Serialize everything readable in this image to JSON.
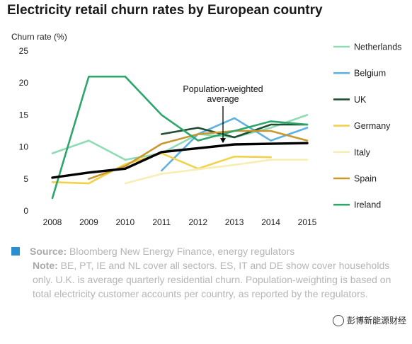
{
  "chart_data": {
    "type": "line",
    "title": "Electricity retail churn rates by European country",
    "ylabel": "Churn rate (%)",
    "xlabel": "",
    "ylim": [
      0,
      25
    ],
    "yticks": [
      0,
      5,
      10,
      15,
      20,
      25
    ],
    "x": [
      2008,
      2009,
      2010,
      2011,
      2012,
      2013,
      2014,
      2015
    ],
    "grid": false,
    "legend_position": "right",
    "series": [
      {
        "name": "Netherlands",
        "color": "#8fdcb4",
        "values": [
          9,
          11,
          8,
          9,
          12,
          11.5,
          13,
          15
        ]
      },
      {
        "name": "Belgium",
        "color": "#5fb2e0",
        "values": [
          null,
          null,
          null,
          6.3,
          12,
          14.5,
          11,
          13
        ]
      },
      {
        "name": "UK",
        "color": "#1f4f33",
        "values": [
          null,
          null,
          null,
          12,
          13,
          11.5,
          13.5,
          13.5
        ]
      },
      {
        "name": "Germany",
        "color": "#f2d24a",
        "values": [
          4.5,
          4.3,
          7.3,
          9,
          6.6,
          8.5,
          8.4,
          null
        ]
      },
      {
        "name": "Italy",
        "color": "#f7eeb4",
        "values": [
          null,
          null,
          4.3,
          5.8,
          6.5,
          7.2,
          8,
          8
        ]
      },
      {
        "name": "Spain",
        "color": "#c8982f",
        "values": [
          null,
          5,
          7,
          10.5,
          12,
          12.5,
          12.5,
          11
        ]
      },
      {
        "name": "Ireland",
        "color": "#2ea56a",
        "values": [
          2,
          21,
          21,
          15,
          11,
          12.5,
          14,
          13.5
        ]
      }
    ],
    "average": {
      "label": "Population-weighted average",
      "label_lines": [
        "Population-weighted",
        "average"
      ],
      "color": "#000000",
      "values": [
        5.2,
        6,
        6.6,
        9.2,
        9.8,
        10.4,
        10.5,
        10.6
      ]
    }
  },
  "footer": {
    "source_label": "Source:",
    "source_text": "Bloomberg New Energy Finance, energy regulators",
    "note_label": "Note:",
    "note_text": "BE, PT, IE and NL cover all sectors. ES, IT and DE show cover households only. U.K. is average quarterly residential churn. Population-weighting is based on total electricity customer accounts per country, as reported by the regulators.",
    "source_color": "#2a8fd1"
  },
  "watermark": {
    "text": "彭博新能源财经"
  }
}
